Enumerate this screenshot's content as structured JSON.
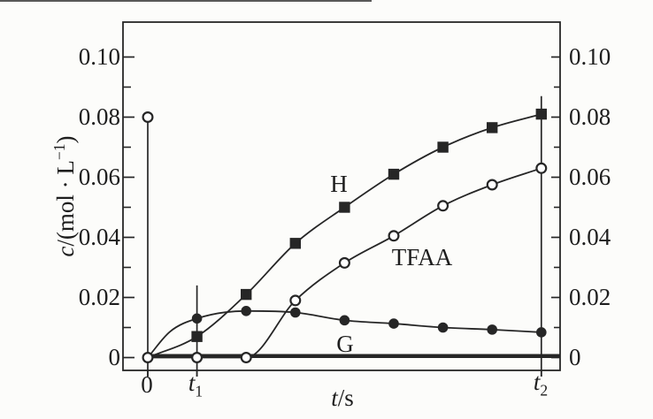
{
  "chart_data": {
    "type": "line",
    "title": "",
    "xlabel": "t/s",
    "ylabel": "c/(mol · L−1)",
    "grid": false,
    "ylim": [
      0,
      0.107
    ],
    "y_ticks": [
      0,
      0.02,
      0.04,
      0.06,
      0.08,
      0.1
    ],
    "y_minor_ticks": [
      0.01,
      0.03,
      0.05,
      0.07,
      0.09
    ],
    "x_axis_note": "9 evenly spaced sample times; labeled ticks only at 0, t1 (index 1) and t2 (index 8)",
    "x_index": [
      0,
      1,
      2,
      3,
      4,
      5,
      6,
      7,
      8
    ],
    "series": [
      {
        "name": "H",
        "marker": "filled-square",
        "marker_from_index": 1,
        "values": [
          0,
          0.007,
          0.021,
          0.038,
          0.05,
          0.061,
          0.07,
          0.0765,
          0.081
        ]
      },
      {
        "name": "TFAA",
        "marker": "open-circle",
        "marker_from_index": 0,
        "values": [
          0,
          0,
          0,
          0.019,
          0.0315,
          0.0405,
          0.0505,
          0.0575,
          0.063
        ]
      },
      {
        "name": "",
        "marker": "filled-circle",
        "marker_from_index": 1,
        "values": [
          0,
          0.013,
          0.0155,
          0.015,
          0.0124,
          0.0113,
          0.01,
          0.0093,
          0.0084
        ]
      },
      {
        "name": "G",
        "marker": "none",
        "style": "thick-constant",
        "constant_value": 0.0005,
        "extends_to_right_frame": true
      }
    ],
    "annotations": {
      "open_circle_point": {
        "x_index": 0,
        "c": 0.08,
        "drop_line_to_axis": true
      },
      "time_marker_lines": [
        {
          "label": "t1",
          "x_index": 1,
          "line_top_c": 0.024
        },
        {
          "label": "t2",
          "x_index": 8,
          "line_top_c": 0.087
        }
      ]
    }
  },
  "labels": {
    "y_axis": {
      "sym": "c",
      "mid": "/(mol · L",
      "sup": "−1",
      "close": ")"
    },
    "x_axis": {
      "base": "t",
      "rest": "/s"
    },
    "y_tick_labels": [
      "0.10",
      "0.08",
      "0.06",
      "0.04",
      "0.02",
      "0"
    ],
    "x_ticks": {
      "zero": "0",
      "t1_base": "t",
      "t1_sub": "1",
      "t2_base": "t",
      "t2_sub": "2"
    },
    "series_labels": {
      "H": "H",
      "TFAA": "TFAA",
      "G": "G"
    }
  },
  "colors": {
    "ink": "#262626",
    "background": "#fcfcfa"
  }
}
